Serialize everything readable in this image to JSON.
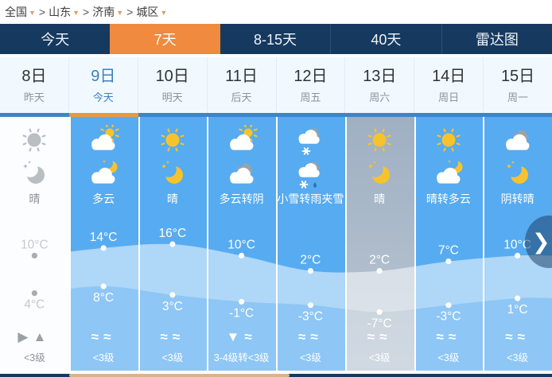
{
  "breadcrumb": {
    "separator": ">",
    "dropdown_arrow": "▼",
    "items": [
      {
        "label": "全国"
      },
      {
        "label": "山东"
      },
      {
        "label": "济南"
      },
      {
        "label": "城区"
      }
    ]
  },
  "tabs": {
    "items": [
      {
        "label": "今天",
        "active": false
      },
      {
        "label": "7天",
        "active": true
      },
      {
        "label": "8-15天",
        "active": false
      },
      {
        "label": "40天",
        "active": false
      },
      {
        "label": "雷达图",
        "active": false
      }
    ]
  },
  "days": [
    {
      "date": "8日",
      "sub": "昨天",
      "state": "past",
      "day_icon": "sun-gray-icon",
      "night_icon": "moon-gray-icon",
      "desc": "晴",
      "high": "10°C",
      "low": "4°C",
      "wind_icons": [
        "wind-direction-right-icon",
        "wind-direction-up-icon"
      ],
      "wind_level": "<3级"
    },
    {
      "date": "9日",
      "sub": "今天",
      "state": "today",
      "day_icon": "cloud-sun-icon",
      "night_icon": "cloud-moon-icon",
      "desc": "多云",
      "high": "14°C",
      "low": "8°C",
      "wind_icons": [
        "breeze-wave-icon",
        "breeze-wave-icon"
      ],
      "wind_level": "<3级"
    },
    {
      "date": "10日",
      "sub": "明天",
      "state": "normal",
      "day_icon": "sun-icon",
      "night_icon": "moon-icon",
      "desc": "晴",
      "high": "16°C",
      "low": "3°C",
      "wind_icons": [
        "breeze-wave-icon",
        "breeze-wave-icon"
      ],
      "wind_level": "<3级"
    },
    {
      "date": "11日",
      "sub": "后天",
      "state": "normal",
      "day_icon": "cloud-sun-icon",
      "night_icon": "overcast-cloud-icon",
      "desc": "多云转阴",
      "high": "10°C",
      "low": "-1°C",
      "wind_icons": [
        "wind-direction-down-icon",
        "breeze-wave-icon"
      ],
      "wind_level": "3-4级转<3级"
    },
    {
      "date": "12日",
      "sub": "周五",
      "state": "normal",
      "day_icon": "snow-cloud-icon",
      "night_icon": "sleet-cloud-icon",
      "desc": "小雪转雨夹雪",
      "high": "2°C",
      "low": "-3°C",
      "wind_icons": [
        "breeze-wave-icon",
        "breeze-wave-icon"
      ],
      "wind_level": "<3级"
    },
    {
      "date": "13日",
      "sub": "周六",
      "state": "grayed",
      "day_icon": "sun-icon",
      "night_icon": "moon-icon",
      "desc": "晴",
      "high": "2°C",
      "low": "-7°C",
      "wind_icons": [
        "breeze-wave-icon",
        "breeze-wave-icon"
      ],
      "wind_level": "<3级"
    },
    {
      "date": "14日",
      "sub": "周日",
      "state": "normal",
      "day_icon": "sun-icon",
      "night_icon": "cloud-moon-icon",
      "desc": "晴转多云",
      "high": "7°C",
      "low": "-3°C",
      "wind_icons": [
        "breeze-wave-icon",
        "breeze-wave-icon"
      ],
      "wind_level": "<3级"
    },
    {
      "date": "15日",
      "sub": "周一",
      "state": "normal",
      "day_icon": "overcast-cloud-icon",
      "night_icon": "moon-icon",
      "desc": "阴转晴",
      "high": "10°C",
      "low": "1°C",
      "wind_icons": [
        "breeze-wave-icon",
        "breeze-wave-icon"
      ],
      "wind_level": "<3级"
    }
  ],
  "chart_data": {
    "type": "line",
    "categories": [
      "8日",
      "9日",
      "10日",
      "11日",
      "12日",
      "13日",
      "14日",
      "15日"
    ],
    "series": [
      {
        "name": "high",
        "values": [
          10,
          14,
          16,
          10,
          2,
          2,
          7,
          10
        ],
        "unit": "°C"
      },
      {
        "name": "low",
        "values": [
          4,
          8,
          3,
          -1,
          -3,
          -7,
          -3,
          1
        ],
        "unit": "°C"
      }
    ],
    "style": "filled band between high and low curves with point markers and value labels"
  },
  "pager": {
    "next_glyph": "❯"
  },
  "colors": {
    "tab_bar": "#16395f",
    "tab_active": "#f08a3e",
    "sky_blue": "#57abf0",
    "underline_blue": "#4084c8",
    "underline_orange": "#e8993f",
    "grayed_column": "#a7b6c8",
    "scroll_thumb": "#d9b392"
  }
}
